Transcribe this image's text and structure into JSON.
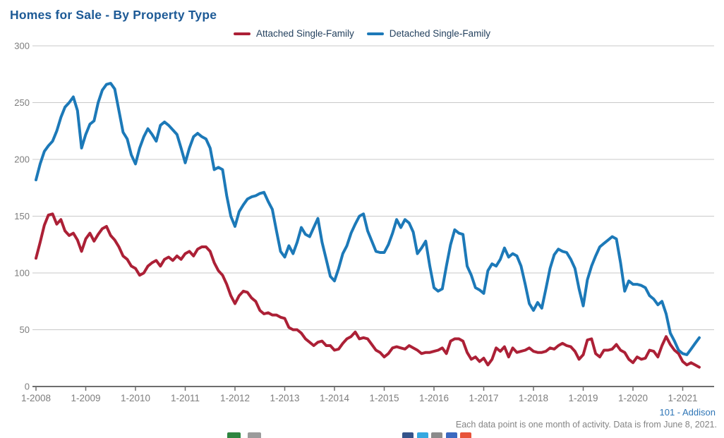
{
  "title": "Homes for Sale - By Property Type",
  "footer": {
    "location_link": "101 - Addison",
    "note": "Each data point is one month of activity. Data is from June 8, 2021."
  },
  "chart_data": {
    "type": "line",
    "title": "Homes for Sale - By Property Type",
    "x_unit": "month",
    "x_start": "1-2008",
    "x_end": "5-2021",
    "x_tick_labels": [
      "1-2008",
      "1-2009",
      "1-2010",
      "1-2011",
      "1-2012",
      "1-2013",
      "1-2014",
      "1-2015",
      "1-2016",
      "1-2017",
      "1-2018",
      "1-2019",
      "1-2020",
      "1-2021"
    ],
    "ylim": [
      0,
      300
    ],
    "y_ticks": [
      0,
      50,
      100,
      150,
      200,
      250,
      300
    ],
    "grid": true,
    "legend_position": "top",
    "series": [
      {
        "name": "Attached Single-Family",
        "color": "#ac2036",
        "values": [
          113,
          127,
          142,
          151,
          152,
          143,
          147,
          137,
          133,
          135,
          129,
          119,
          130,
          135,
          128,
          134,
          139,
          141,
          133,
          129,
          123,
          115,
          112,
          106,
          104,
          98,
          100,
          106,
          109,
          111,
          106,
          112,
          114,
          111,
          115,
          112,
          117,
          119,
          115,
          121,
          123,
          123,
          119,
          109,
          102,
          98,
          90,
          80,
          73,
          80,
          84,
          83,
          78,
          75,
          67,
          64,
          65,
          63,
          63,
          61,
          60,
          52,
          50,
          50,
          47,
          42,
          39,
          36,
          39,
          40,
          36,
          36,
          32,
          33,
          38,
          42,
          44,
          48,
          42,
          43,
          42,
          37,
          32,
          30,
          26,
          29,
          34,
          35,
          34,
          33,
          36,
          34,
          32,
          29,
          30,
          30,
          31,
          32,
          34,
          29,
          40,
          42,
          42,
          40,
          30,
          24,
          26,
          22,
          25,
          19,
          24,
          34,
          31,
          35,
          26,
          34,
          30,
          31,
          32,
          34,
          31,
          30,
          30,
          31,
          34,
          33,
          36,
          38,
          36,
          35,
          31,
          24,
          28,
          41,
          42,
          29,
          26,
          32,
          32,
          33,
          37,
          32,
          30,
          24,
          21,
          26,
          24,
          25,
          32,
          31,
          26,
          36,
          44,
          37,
          32,
          29,
          22,
          19,
          21,
          19,
          17
        ]
      },
      {
        "name": "Detached Single-Family",
        "color": "#1c79b8",
        "values": [
          182,
          196,
          207,
          212,
          216,
          225,
          237,
          246,
          250,
          255,
          243,
          210,
          222,
          231,
          234,
          250,
          261,
          266,
          267,
          262,
          243,
          224,
          218,
          204,
          196,
          210,
          220,
          227,
          222,
          216,
          230,
          233,
          230,
          226,
          222,
          210,
          197,
          210,
          220,
          223,
          220,
          218,
          210,
          191,
          193,
          191,
          168,
          150,
          141,
          154,
          160,
          165,
          167,
          168,
          170,
          171,
          163,
          156,
          137,
          119,
          114,
          124,
          117,
          127,
          140,
          134,
          132,
          140,
          148,
          127,
          112,
          97,
          93,
          104,
          117,
          124,
          135,
          143,
          150,
          152,
          137,
          128,
          119,
          118,
          118,
          125,
          135,
          147,
          140,
          147,
          144,
          136,
          117,
          122,
          128,
          106,
          87,
          84,
          86,
          106,
          125,
          138,
          135,
          134,
          106,
          98,
          87,
          85,
          82,
          102,
          108,
          106,
          112,
          122,
          114,
          117,
          115,
          106,
          90,
          73,
          67,
          74,
          69,
          86,
          104,
          116,
          121,
          119,
          118,
          112,
          104,
          86,
          71,
          94,
          106,
          115,
          123,
          126,
          129,
          132,
          130,
          109,
          84,
          93,
          90,
          90,
          89,
          87,
          80,
          77,
          72,
          75,
          64,
          47,
          40,
          32,
          29,
          28,
          33,
          38,
          43
        ]
      }
    ],
    "style": {
      "grid_color": "#c9c9c9",
      "axis_color": "#6e6e6e",
      "tick_label_color": "#7d7d7d",
      "line_width": 4
    }
  },
  "share_icons": {
    "left": [
      {
        "name": "export-icon-green",
        "color": "#2e8540"
      },
      {
        "name": "export-icon-gray",
        "color": "#9b9b9b"
      }
    ],
    "right": [
      {
        "name": "share-icon-linkedin",
        "color": "#34538a"
      },
      {
        "name": "share-icon-twitter",
        "color": "#35a8e0"
      },
      {
        "name": "share-icon-email",
        "color": "#8b8b8b"
      },
      {
        "name": "share-icon-facebook",
        "color": "#3b69c0"
      },
      {
        "name": "share-icon-googleplus",
        "color": "#e8533a"
      }
    ]
  }
}
